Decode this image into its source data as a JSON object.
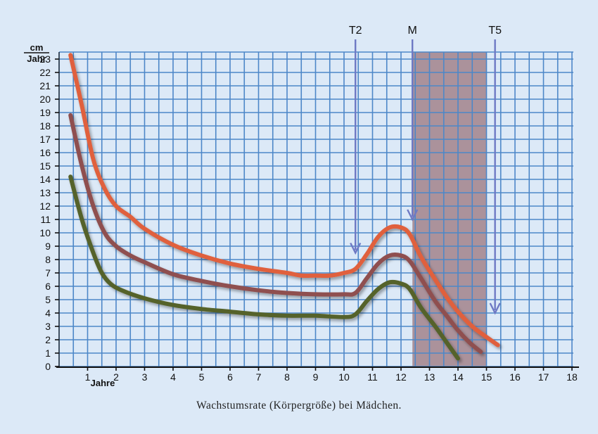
{
  "chart_data": {
    "type": "line",
    "title": "Wachstumsrate (Körpergröße) bei Mädchen.",
    "xlabel": "Jahre",
    "ylabel_top": "cm",
    "ylabel_bottom": "Jahr",
    "xlim": [
      0,
      18
    ],
    "ylim": [
      0,
      23
    ],
    "x_ticks": [
      1,
      2,
      3,
      4,
      5,
      6,
      7,
      8,
      9,
      10,
      11,
      12,
      13,
      14,
      15,
      16,
      17,
      18
    ],
    "y_ticks": [
      0,
      1,
      2,
      3,
      4,
      5,
      6,
      7,
      8,
      9,
      10,
      11,
      12,
      13,
      14,
      15,
      16,
      17,
      18,
      19,
      20,
      21,
      22,
      23
    ],
    "grid": true,
    "shaded_region": {
      "x_from": 12.4,
      "x_to": 15.0,
      "color": "#a88d96"
    },
    "markers": [
      {
        "label": "T2",
        "x": 10.4,
        "arrow_to_y": 8.5
      },
      {
        "label": "M",
        "x": 12.4,
        "arrow_to_y": 11.0
      },
      {
        "label": "T5",
        "x": 15.3,
        "arrow_to_y": 4.0
      }
    ],
    "series": [
      {
        "name": "upper",
        "color": "#e0603d",
        "x": [
          0.4,
          0.8,
          1.2,
          1.6,
          2.0,
          2.5,
          3.0,
          4.0,
          5.0,
          6.0,
          7.0,
          8.0,
          8.5,
          9.0,
          9.5,
          10.0,
          10.4,
          10.8,
          11.2,
          11.6,
          12.0,
          12.3,
          12.7,
          13.2,
          13.6,
          14.0,
          14.5,
          15.0,
          15.4
        ],
        "y": [
          23.3,
          19.5,
          15.5,
          13.3,
          12.0,
          11.2,
          10.3,
          9.1,
          8.3,
          7.7,
          7.3,
          7.0,
          6.8,
          6.8,
          6.8,
          7.0,
          7.3,
          8.4,
          9.7,
          10.4,
          10.4,
          9.9,
          8.2,
          6.5,
          5.2,
          4.1,
          3.0,
          2.2,
          1.6
        ]
      },
      {
        "name": "middle",
        "color": "#8f4f50",
        "x": [
          0.4,
          0.8,
          1.2,
          1.6,
          2.0,
          2.5,
          3.0,
          4.0,
          5.0,
          6.0,
          7.0,
          8.0,
          9.0,
          10.0,
          10.4,
          10.8,
          11.2,
          11.6,
          12.0,
          12.3,
          12.7,
          13.2,
          13.6,
          14.0,
          14.4,
          14.8
        ],
        "y": [
          18.8,
          15.0,
          12.0,
          10.0,
          9.0,
          8.3,
          7.8,
          6.9,
          6.4,
          6.0,
          5.7,
          5.5,
          5.4,
          5.4,
          5.5,
          6.6,
          7.7,
          8.3,
          8.3,
          7.9,
          6.6,
          4.9,
          3.8,
          2.7,
          1.8,
          1.1
        ]
      },
      {
        "name": "lower",
        "color": "#55622c",
        "x": [
          0.4,
          0.8,
          1.2,
          1.5,
          1.8,
          2.2,
          3.0,
          4.0,
          5.0,
          6.0,
          7.0,
          8.0,
          9.0,
          10.0,
          10.4,
          10.8,
          11.2,
          11.6,
          12.0,
          12.3,
          12.7,
          13.2,
          13.6,
          14.0
        ],
        "y": [
          14.2,
          11.0,
          8.5,
          7.0,
          6.2,
          5.7,
          5.1,
          4.6,
          4.3,
          4.1,
          3.9,
          3.8,
          3.8,
          3.7,
          3.9,
          4.9,
          5.8,
          6.3,
          6.2,
          5.8,
          4.4,
          3.0,
          1.8,
          0.6
        ]
      }
    ]
  }
}
